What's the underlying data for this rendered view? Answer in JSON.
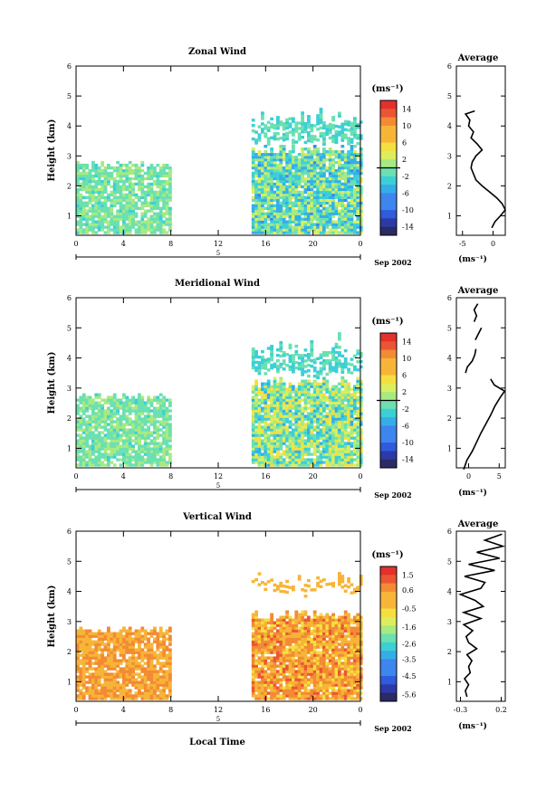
{
  "x_axis": {
    "ticks": [
      "0",
      "4",
      "8",
      "12",
      "16",
      "20",
      "0"
    ],
    "day_label": "5",
    "date_label": "Sep 2002",
    "bottom_label": "Local Time"
  },
  "y_axis": {
    "label": "Height (km)",
    "ticks": [
      "1",
      "2",
      "3",
      "4",
      "5",
      "6"
    ]
  },
  "colorbar_unit": "(ms⁻¹)",
  "panels": [
    {
      "title": "Zonal Wind",
      "average_title": "Average",
      "colorbar_ticks": [
        "14",
        "10",
        "6",
        "2",
        "-2",
        "-6",
        "-10",
        "-14"
      ],
      "colorbar_range": [
        -16,
        16
      ],
      "colorbar_zero_line": 0,
      "average_x_ticks": [
        "-5",
        "0"
      ],
      "average_x_label": "(ms⁻¹)",
      "average_xlim": [
        -6,
        2
      ],
      "average_profile": [
        [
          0.6,
          -0.2
        ],
        [
          0.8,
          0.3
        ],
        [
          1.0,
          1.2
        ],
        [
          1.2,
          2.0
        ],
        [
          1.4,
          1.5
        ],
        [
          1.6,
          0.6
        ],
        [
          1.8,
          -0.6
        ],
        [
          2.0,
          -1.8
        ],
        [
          2.2,
          -2.8
        ],
        [
          2.4,
          -3.2
        ],
        [
          2.6,
          -3.6
        ],
        [
          2.8,
          -3.4
        ],
        [
          3.0,
          -2.8
        ],
        [
          3.2,
          -1.8
        ],
        [
          3.4,
          -2.6
        ],
        [
          3.6,
          -3.6
        ],
        [
          3.8,
          -3.2
        ],
        [
          4.0,
          -4.0
        ],
        [
          4.2,
          -3.8
        ],
        [
          4.4,
          -4.5
        ],
        [
          4.5,
          -3.0
        ]
      ]
    },
    {
      "title": "Meridional Wind",
      "average_title": "Average",
      "colorbar_ticks": [
        "14",
        "10",
        "6",
        "2",
        "-2",
        "-6",
        "-10",
        "-14"
      ],
      "colorbar_range": [
        -16,
        16
      ],
      "colorbar_zero_line": 0,
      "average_x_ticks": [
        "0",
        "5"
      ],
      "average_x_label": "(ms⁻¹)",
      "average_xlim": [
        -2,
        6
      ],
      "average_profile_segments": [
        [
          [
            0.3,
            -0.8
          ],
          [
            0.6,
            -0.3
          ],
          [
            0.9,
            0.6
          ],
          [
            1.2,
            1.3
          ],
          [
            1.5,
            2.0
          ],
          [
            1.8,
            2.8
          ],
          [
            2.1,
            3.6
          ],
          [
            2.4,
            4.3
          ],
          [
            2.7,
            5.2
          ],
          [
            2.9,
            5.9
          ],
          [
            3.1,
            4.2
          ],
          [
            3.3,
            3.6
          ]
        ],
        [
          [
            3.5,
            -0.5
          ],
          [
            3.7,
            -0.2
          ],
          [
            3.9,
            0.6
          ],
          [
            4.1,
            1.0
          ],
          [
            4.3,
            1.2
          ]
        ],
        [
          [
            4.6,
            1.1
          ],
          [
            4.8,
            1.6
          ],
          [
            5.0,
            2.1
          ]
        ],
        [
          [
            5.2,
            0.9
          ],
          [
            5.4,
            1.3
          ],
          [
            5.6,
            0.9
          ],
          [
            5.8,
            1.5
          ]
        ]
      ]
    },
    {
      "title": "Vertical Wind",
      "average_title": "Average",
      "colorbar_ticks": [
        "1.5",
        "0.6",
        "-0.5",
        "-1.6",
        "-2.6",
        "-3.5",
        "-4.5",
        "-5.6"
      ],
      "colorbar_range": [
        -6.0,
        2.0
      ],
      "average_x_ticks": [
        "-0.3",
        "0.2"
      ],
      "average_x_label": "(ms⁻¹)",
      "average_xlim": [
        -0.35,
        0.25
      ],
      "average_profile": [
        [
          0.5,
          -0.22
        ],
        [
          0.7,
          -0.24
        ],
        [
          0.9,
          -0.2
        ],
        [
          1.1,
          -0.25
        ],
        [
          1.3,
          -0.18
        ],
        [
          1.5,
          -0.2
        ],
        [
          1.7,
          -0.16
        ],
        [
          1.9,
          -0.22
        ],
        [
          2.1,
          -0.1
        ],
        [
          2.3,
          -0.2
        ],
        [
          2.5,
          -0.23
        ],
        [
          2.7,
          -0.15
        ],
        [
          2.9,
          -0.26
        ],
        [
          3.1,
          -0.05
        ],
        [
          3.3,
          -0.26
        ],
        [
          3.5,
          -0.02
        ],
        [
          3.7,
          -0.12
        ],
        [
          3.9,
          -0.3
        ],
        [
          4.1,
          -0.05
        ],
        [
          4.3,
          0.0
        ],
        [
          4.5,
          -0.25
        ],
        [
          4.7,
          0.12
        ],
        [
          4.9,
          -0.2
        ],
        [
          5.1,
          0.18
        ],
        [
          5.3,
          -0.1
        ],
        [
          5.5,
          0.22
        ],
        [
          5.7,
          0.0
        ],
        [
          5.9,
          0.21
        ]
      ]
    }
  ]
}
